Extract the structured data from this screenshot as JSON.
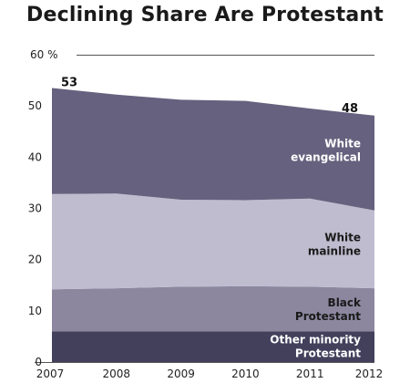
{
  "chart_data": {
    "type": "area",
    "title": "Declining Share Are Protestant",
    "x": [
      "2007",
      "2008",
      "2009",
      "2010",
      "2011",
      "2012"
    ],
    "y_unit_label": "60 %",
    "yticks": [
      0,
      10,
      20,
      30,
      40,
      50,
      60
    ],
    "ylim": [
      0,
      60
    ],
    "stacked": true,
    "series": [
      {
        "name": "Other minority Protestant",
        "values": [
          6.0,
          6.0,
          6.0,
          6.0,
          6.0,
          6.0
        ]
      },
      {
        "name": "Black Protestant",
        "values": [
          8.2,
          8.4,
          8.7,
          8.8,
          8.7,
          8.4
        ]
      },
      {
        "name": "White mainline",
        "values": [
          18.6,
          18.5,
          17.0,
          16.8,
          17.2,
          15.2
        ]
      },
      {
        "name": "White evangelical",
        "values": [
          20.7,
          19.3,
          19.5,
          19.4,
          17.6,
          18.5
        ]
      }
    ],
    "series_labels": [
      [
        "Other minority",
        "Protestant"
      ],
      [
        "Black",
        "Protestant"
      ],
      [
        "White",
        "mainline"
      ],
      [
        "White",
        "evangelical"
      ]
    ],
    "totals": {
      "first": "53",
      "last": "48"
    },
    "colors": [
      "#43405c",
      "#8c879f",
      "#c0bccf",
      "#66617e"
    ],
    "label_colors": [
      "#ffffff",
      "#1a1a1a",
      "#1a1a1a",
      "#ffffff"
    ],
    "grid": false,
    "legend": "inline"
  }
}
